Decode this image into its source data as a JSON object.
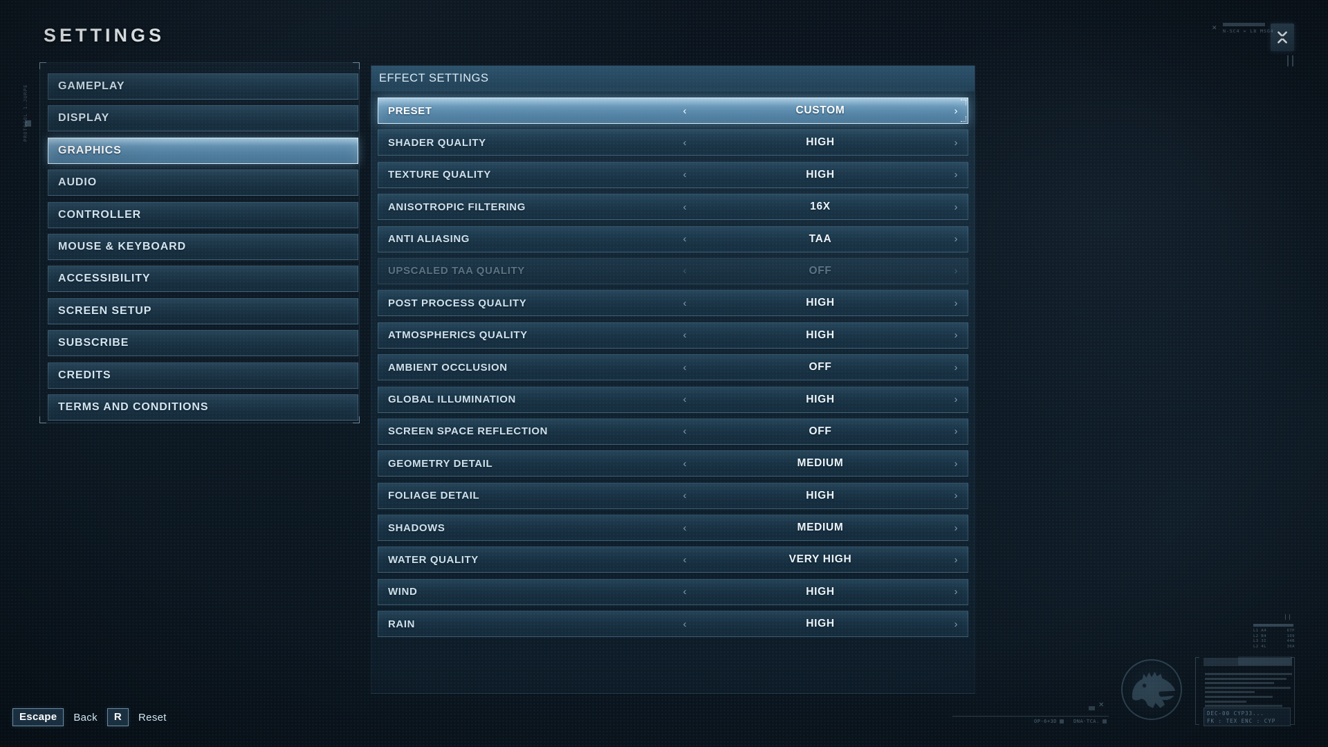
{
  "title": "SETTINGS",
  "sidebar": {
    "items": [
      {
        "label": "GAMEPLAY",
        "selected": false
      },
      {
        "label": "DISPLAY",
        "selected": false
      },
      {
        "label": "GRAPHICS",
        "selected": true
      },
      {
        "label": "AUDIO",
        "selected": false
      },
      {
        "label": "CONTROLLER",
        "selected": false
      },
      {
        "label": "MOUSE & KEYBOARD",
        "selected": false
      },
      {
        "label": "ACCESSIBILITY",
        "selected": false
      },
      {
        "label": "SCREEN SETUP",
        "selected": false
      },
      {
        "label": "SUBSCRIBE",
        "selected": false
      },
      {
        "label": "CREDITS",
        "selected": false
      },
      {
        "label": "TERMS AND CONDITIONS",
        "selected": false
      }
    ]
  },
  "panel": {
    "header": "EFFECT SETTINGS",
    "chevron_left": "‹",
    "chevron_right": "›",
    "rows": [
      {
        "label": "PRESET",
        "value": "CUSTOM",
        "state": "selected"
      },
      {
        "label": "SHADER QUALITY",
        "value": "HIGH",
        "state": "normal"
      },
      {
        "label": "TEXTURE QUALITY",
        "value": "HIGH",
        "state": "normal"
      },
      {
        "label": "ANISOTROPIC FILTERING",
        "value": "16X",
        "state": "normal"
      },
      {
        "label": "ANTI ALIASING",
        "value": "TAA",
        "state": "normal"
      },
      {
        "label": "UPSCALED TAA QUALITY",
        "value": "OFF",
        "state": "disabled"
      },
      {
        "label": "POST PROCESS QUALITY",
        "value": "HIGH",
        "state": "normal"
      },
      {
        "label": "ATMOSPHERICS QUALITY",
        "value": "HIGH",
        "state": "normal"
      },
      {
        "label": "AMBIENT OCCLUSION",
        "value": "OFF",
        "state": "normal"
      },
      {
        "label": "GLOBAL ILLUMINATION",
        "value": "HIGH",
        "state": "normal"
      },
      {
        "label": "SCREEN SPACE REFLECTION",
        "value": "OFF",
        "state": "normal"
      },
      {
        "label": "GEOMETRY DETAIL",
        "value": "MEDIUM",
        "state": "normal"
      },
      {
        "label": "FOLIAGE DETAIL",
        "value": "HIGH",
        "state": "normal"
      },
      {
        "label": "SHADOWS",
        "value": "MEDIUM",
        "state": "normal"
      },
      {
        "label": "WATER QUALITY",
        "value": "VERY HIGH",
        "state": "normal"
      },
      {
        "label": "WIND",
        "value": "HIGH",
        "state": "normal"
      },
      {
        "label": "RAIN",
        "value": "HIGH",
        "state": "normal"
      }
    ]
  },
  "footer": {
    "escape_key": "Escape",
    "back_label": "Back",
    "reset_key": "R",
    "reset_label": "Reset"
  },
  "hud": {
    "protocol_text": "PROTOCOL 1.JURPE",
    "topright_text": "N-SC4 = L8 MSG4",
    "x_mark": "✕",
    "minitable": [
      [
        "L1 A4",
        "67P"
      ],
      [
        "L2 B4",
        "109"
      ],
      [
        "L3 3I",
        "44B"
      ],
      [
        "L2 4L",
        "36A"
      ]
    ],
    "decoder_line1": "DEC-00 CYP33...",
    "decoder_line2": "FK : TEX  ENC : CYP",
    "bottom_label1": "OP-6+3D",
    "bottom_label2": "DNA-TCA."
  },
  "colors": {
    "background": "#0b141d",
    "accent": "#9fd0ea",
    "selected_border": "#d9edf9",
    "row_background": "#21415 7",
    "label_text": "#cfe1ec",
    "value_text": "#eef6fb"
  }
}
